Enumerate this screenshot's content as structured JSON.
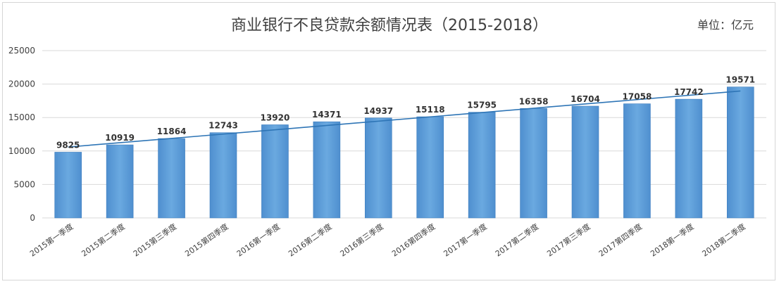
{
  "chart_data": {
    "type": "bar",
    "title": "商业银行不良贷款余额情况表（2015-2018）",
    "unit_label": "单位：亿元",
    "categories": [
      "2015第一季度",
      "2015第二季度",
      "2015第三季度",
      "2015第四季度",
      "2016第一季度",
      "2016第二季度",
      "2016第三季度",
      "2016第四季度",
      "2017第一季度",
      "2017第二季度",
      "2017第三季度",
      "2017第四季度",
      "2018第一季度",
      "2018第二季度"
    ],
    "values": [
      9825,
      10919,
      11864,
      12743,
      13920,
      14371,
      14937,
      15118,
      15795,
      16358,
      16704,
      17058,
      17742,
      19571
    ],
    "yticks": [
      0,
      5000,
      10000,
      15000,
      20000,
      25000
    ],
    "ylim": [
      0,
      25000
    ],
    "grid": true,
    "trendline": true,
    "colors": {
      "bar": "#5b9bd5",
      "bar_dark": "#3f7fbf",
      "trend": "#2e75b6",
      "grid": "#d9d9d9",
      "text": "#404040"
    }
  }
}
